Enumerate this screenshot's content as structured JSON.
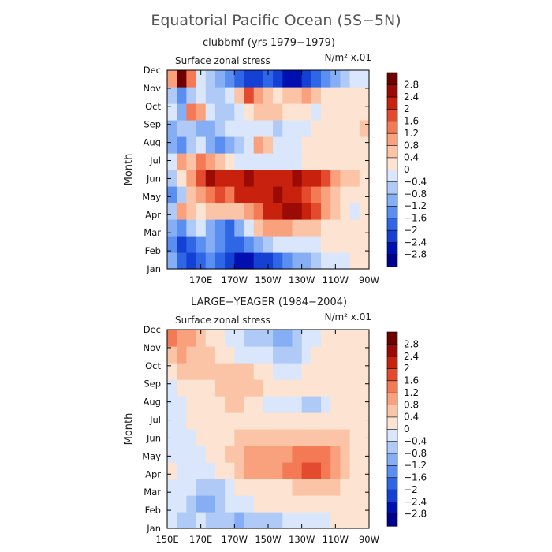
{
  "figure": {
    "title": "Equatorial Pacific Ocean (5S−5N)"
  },
  "colorbar": {
    "levels": [
      -2.8,
      -2.4,
      -2,
      -1.6,
      -1.2,
      -0.8,
      -0.4,
      0,
      0.4,
      0.8,
      1.2,
      1.6,
      2,
      2.4,
      2.8
    ],
    "labels": [
      "−2.8",
      "−2.4",
      "−2",
      "−1.6",
      "−1.2",
      "−0.8",
      "−0.4",
      "0",
      "0.4",
      "0.8",
      "1.2",
      "1.6",
      "2",
      "2.4",
      "2.8"
    ],
    "colors": [
      "#00008c",
      "#0010b0",
      "#1540d4",
      "#2f66e6",
      "#5a8ef0",
      "#86aef5",
      "#b0caf8",
      "#d9e6fb",
      "#fde4d2",
      "#fcc4a6",
      "#f9a07d",
      "#f47a55",
      "#e44a2d",
      "#c8220f",
      "#9c0a05",
      "#6e0000"
    ]
  },
  "chart_data": [
    {
      "type": "heatmap",
      "title": "clubbmf (yrs 1979−1979)",
      "field_label": "Surface zonal stress",
      "units": "N/m² x.01",
      "ylabel": "Month",
      "x_ticks": [
        "170E",
        "170W",
        "150W",
        "130W",
        "110W",
        "90W"
      ],
      "y_ticks": [
        "Jan",
        "Feb",
        "Mar",
        "Apr",
        "May",
        "Jun",
        "Jul",
        "Aug",
        "Sep",
        "Oct",
        "Nov",
        "Dec"
      ],
      "x_lon_range": [
        150,
        270
      ],
      "x_grid": [
        150,
        156,
        162,
        168,
        174,
        180,
        186,
        192,
        198,
        204,
        210,
        216,
        222,
        228,
        234,
        240,
        246,
        252,
        258,
        264,
        270
      ],
      "y_grid": [
        "Jan",
        "Feb",
        "Mar",
        "Apr",
        "May",
        "Jun",
        "Jul",
        "Aug",
        "Sep",
        "Oct",
        "Nov",
        "Dec"
      ],
      "values": [
        [
          -1.2,
          -2.0,
          -2.4,
          -2.0,
          -1.6,
          -2.0,
          -2.4,
          -2.8,
          -2.8,
          -2.4,
          -2.4,
          -2.0,
          -1.6,
          -1.2,
          -1.2,
          -0.8,
          -0.4,
          -0.4,
          -0.4,
          0.0,
          0.0
        ],
        [
          -1.6,
          -2.4,
          -2.0,
          -1.6,
          -1.2,
          -1.6,
          -2.0,
          -2.0,
          -1.6,
          -1.2,
          -0.8,
          -0.4,
          -0.4,
          -0.4,
          -0.4,
          -0.4,
          0.0,
          0.0,
          0.0,
          0.0,
          0.0
        ],
        [
          -1.2,
          -1.6,
          -0.8,
          -0.4,
          -1.2,
          -1.6,
          -2.0,
          -1.2,
          -0.4,
          0.4,
          0.8,
          0.8,
          0.8,
          0.4,
          0.4,
          0.4,
          0.0,
          0.0,
          0.0,
          0.0,
          0.0
        ],
        [
          -0.8,
          0.8,
          0.4,
          0.0,
          0.4,
          0.4,
          0.4,
          0.4,
          0.8,
          1.2,
          2.0,
          2.0,
          2.4,
          2.4,
          2.0,
          1.6,
          0.8,
          0.4,
          0.0,
          -0.4,
          0.0
        ],
        [
          -1.6,
          -0.8,
          0.4,
          0.8,
          1.2,
          1.6,
          1.2,
          2.0,
          2.0,
          2.0,
          2.0,
          2.4,
          2.0,
          2.0,
          1.6,
          1.2,
          0.8,
          0.4,
          0.0,
          0.0,
          0.0
        ],
        [
          -0.8,
          0.0,
          0.8,
          1.6,
          2.4,
          2.0,
          2.0,
          2.0,
          2.4,
          2.0,
          2.0,
          2.0,
          2.0,
          2.4,
          2.0,
          2.0,
          1.6,
          0.8,
          0.4,
          0.4,
          0.0
        ],
        [
          -0.4,
          0.8,
          0.4,
          1.2,
          0.8,
          0.4,
          0.0,
          -0.4,
          -0.4,
          -0.4,
          -0.4,
          -0.4,
          -0.4,
          -0.4,
          0.0,
          0.0,
          0.0,
          0.0,
          0.0,
          0.0,
          0.0
        ],
        [
          -1.2,
          -1.6,
          -0.8,
          -0.4,
          -1.2,
          -1.6,
          -1.2,
          -0.8,
          -0.4,
          0.8,
          0.4,
          -0.4,
          -0.4,
          -0.4,
          0.0,
          0.0,
          0.0,
          0.0,
          0.0,
          0.0,
          0.0
        ],
        [
          -1.2,
          -0.8,
          -0.8,
          -1.2,
          -1.2,
          -0.8,
          -0.4,
          -0.4,
          -0.4,
          -0.4,
          -0.4,
          -0.8,
          -0.4,
          -0.4,
          -0.4,
          0.0,
          0.0,
          0.0,
          0.0,
          0.0,
          0.4
        ],
        [
          -0.4,
          -1.2,
          1.2,
          0.8,
          -0.4,
          -0.8,
          -0.8,
          -0.4,
          0.0,
          0.4,
          0.4,
          0.4,
          0.0,
          0.0,
          0.0,
          -0.4,
          0.0,
          0.0,
          0.0,
          0.0,
          0.0
        ],
        [
          -0.8,
          -1.6,
          -0.8,
          -0.4,
          -0.8,
          -0.8,
          -0.4,
          0.4,
          1.6,
          0.8,
          0.4,
          0.0,
          0.4,
          0.4,
          0.8,
          0.4,
          0.0,
          0.0,
          0.0,
          0.0,
          0.0
        ],
        [
          0.8,
          2.8,
          1.2,
          -0.4,
          -0.8,
          -1.2,
          -1.6,
          -2.0,
          -2.4,
          -2.4,
          -2.0,
          -2.4,
          -2.8,
          -2.8,
          -2.4,
          -2.0,
          -1.6,
          -1.2,
          -0.8,
          -0.4,
          -0.4
        ]
      ]
    },
    {
      "type": "heatmap",
      "title": "LARGE−YEAGER (1984−2004)",
      "field_label": "Surface zonal stress",
      "units": "N/m² x.01",
      "ylabel": "Month",
      "x_ticks": [
        "150E",
        "170E",
        "170W",
        "150W",
        "130W",
        "110W",
        "90W"
      ],
      "y_ticks": [
        "Jan",
        "Feb",
        "Mar",
        "Apr",
        "May",
        "Jun",
        "Jul",
        "Aug",
        "Sep",
        "Oct",
        "Nov",
        "Dec"
      ],
      "x_lon_range": [
        150,
        270
      ],
      "x_grid": [
        150,
        156,
        162,
        168,
        174,
        180,
        186,
        192,
        198,
        204,
        210,
        216,
        222,
        228,
        234,
        240,
        246,
        252,
        258,
        264,
        270
      ],
      "y_grid": [
        "Jan",
        "Feb",
        "Mar",
        "Apr",
        "May",
        "Jun",
        "Jul",
        "Aug",
        "Sep",
        "Oct",
        "Nov",
        "Dec"
      ],
      "values": [
        [
          -0.4,
          -0.8,
          -0.8,
          -0.4,
          -0.8,
          -0.8,
          -0.8,
          -1.2,
          -0.8,
          -0.8,
          -0.8,
          -0.8,
          -0.4,
          -0.4,
          -0.4,
          -0.4,
          -0.4,
          0.0,
          0.0,
          0.0,
          0.0
        ],
        [
          -0.4,
          -0.4,
          -0.8,
          -1.2,
          -1.2,
          -0.8,
          -0.4,
          -0.4,
          -0.4,
          0.0,
          0.0,
          0.0,
          0.0,
          0.0,
          0.0,
          0.0,
          0.0,
          0.0,
          0.0,
          0.0,
          0.0
        ],
        [
          -0.4,
          -0.4,
          -0.4,
          -0.8,
          -0.8,
          -0.8,
          -0.4,
          0.0,
          0.0,
          0.0,
          0.0,
          0.0,
          0.0,
          0.4,
          0.4,
          0.4,
          0.4,
          0.4,
          0.0,
          0.0,
          0.0
        ],
        [
          0.0,
          -0.4,
          -0.4,
          -0.4,
          -0.4,
          0.0,
          0.0,
          0.4,
          0.8,
          0.8,
          0.8,
          0.8,
          1.2,
          1.2,
          1.6,
          1.6,
          1.2,
          0.8,
          0.4,
          0.0,
          0.0
        ],
        [
          -0.4,
          -0.4,
          -0.4,
          -0.4,
          0.0,
          0.0,
          0.4,
          0.4,
          0.8,
          0.8,
          0.8,
          0.8,
          0.8,
          1.2,
          1.2,
          1.2,
          1.2,
          0.8,
          0.4,
          0.0,
          0.0
        ],
        [
          -0.4,
          -0.4,
          -0.4,
          0.0,
          0.0,
          0.0,
          0.0,
          0.4,
          0.4,
          0.4,
          0.4,
          0.4,
          0.4,
          0.4,
          0.4,
          0.4,
          0.4,
          0.4,
          0.4,
          0.0,
          0.0
        ],
        [
          -0.4,
          -0.4,
          0.0,
          0.0,
          0.0,
          0.0,
          0.0,
          0.0,
          0.0,
          0.0,
          0.0,
          0.0,
          0.0,
          0.0,
          0.0,
          0.0,
          0.0,
          0.0,
          0.0,
          0.0,
          0.0
        ],
        [
          -0.4,
          -0.4,
          0.0,
          0.0,
          0.0,
          0.0,
          0.4,
          0.4,
          0.0,
          0.0,
          -0.4,
          -0.4,
          -0.4,
          -0.4,
          -0.8,
          -0.8,
          -0.4,
          0.0,
          0.0,
          0.0,
          0.0
        ],
        [
          -0.4,
          0.0,
          0.0,
          0.0,
          0.0,
          0.4,
          0.4,
          0.4,
          0.4,
          0.4,
          0.0,
          0.0,
          0.0,
          0.0,
          0.0,
          0.0,
          0.0,
          0.0,
          0.0,
          0.0,
          0.0
        ],
        [
          0.0,
          0.4,
          0.4,
          0.4,
          0.4,
          0.4,
          0.4,
          0.4,
          0.4,
          0.0,
          0.0,
          -0.4,
          -0.4,
          -0.4,
          0.0,
          0.0,
          0.0,
          0.0,
          0.0,
          0.0,
          0.0
        ],
        [
          0.4,
          0.8,
          0.4,
          0.4,
          0.4,
          0.0,
          0.0,
          -0.4,
          -0.4,
          -0.4,
          -0.4,
          -0.8,
          -0.8,
          -0.8,
          -0.4,
          0.0,
          0.0,
          0.0,
          0.0,
          0.0,
          0.0
        ],
        [
          1.2,
          0.8,
          0.8,
          0.4,
          0.0,
          0.0,
          -0.4,
          -0.4,
          -0.8,
          -0.8,
          -0.8,
          -1.2,
          -1.2,
          -0.8,
          -0.4,
          -0.4,
          0.0,
          0.0,
          0.0,
          0.0,
          0.0
        ]
      ]
    }
  ]
}
